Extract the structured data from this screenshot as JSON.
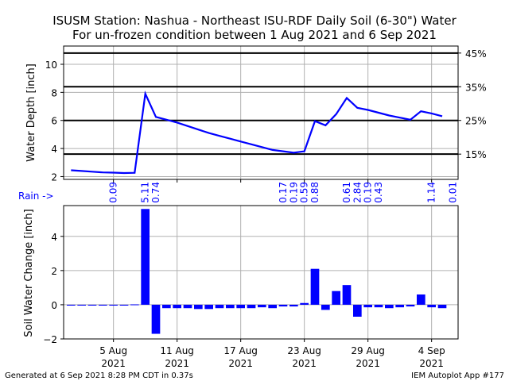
{
  "title_line1": "ISUSM Station: Nashua - Northeast ISU-RDF Daily Soil (6-30\") Water",
  "title_line2": "For un-frozen condition between 1 Aug 2021 and 6 Sep 2021",
  "rain_label": "Rain ->",
  "footer_left": "Generated at 6 Sep 2021 8:28 PM CDT in 0.37s",
  "footer_right": "IEM Autoplot App #177",
  "colors": {
    "series": "#0000ff",
    "grid": "#b0b0b0",
    "threshold": "#000000"
  },
  "chart_data": [
    {
      "type": "line",
      "ylabel": "Water Depth [inch]",
      "ylim": [
        1.8,
        11.3
      ],
      "yticks": [
        2,
        4,
        6,
        8,
        10
      ],
      "xlim": [
        -0.7,
        36.5
      ],
      "x_tick_positions": [
        4,
        10,
        16,
        22,
        28,
        34
      ],
      "grid": true,
      "thresholds": [
        {
          "value": 3.6,
          "label": "15%"
        },
        {
          "value": 6.0,
          "label": "25%"
        },
        {
          "value": 8.4,
          "label": "35%"
        },
        {
          "value": 10.8,
          "label": "45%"
        }
      ],
      "x": [
        0,
        1,
        2,
        3,
        4,
        5,
        6,
        7,
        8,
        9,
        10,
        11,
        12,
        13,
        14,
        15,
        16,
        17,
        18,
        19,
        20,
        21,
        22,
        23,
        24,
        25,
        26,
        27,
        28,
        29,
        30,
        31,
        32,
        33,
        34,
        35
      ],
      "values": [
        2.45,
        2.4,
        2.35,
        2.3,
        2.28,
        2.25,
        2.27,
        7.9,
        6.25,
        6.05,
        5.85,
        5.6,
        5.35,
        5.1,
        4.9,
        4.7,
        4.5,
        4.3,
        4.1,
        3.9,
        3.8,
        3.7,
        3.8,
        5.95,
        5.65,
        6.45,
        7.6,
        6.9,
        6.75,
        6.55,
        6.35,
        6.2,
        6.05,
        6.65,
        6.5,
        6.3
      ]
    },
    {
      "type": "bar",
      "ylabel": "Soil Water Change [inch]",
      "ylim": [
        -2,
        5.8
      ],
      "yticks": [
        -2,
        0,
        2,
        4
      ],
      "xlim": [
        -0.7,
        36.5
      ],
      "x_ticks": [
        {
          "x": 4,
          "label": [
            "5 Aug",
            "2021"
          ]
        },
        {
          "x": 10,
          "label": [
            "11 Aug",
            "2021"
          ]
        },
        {
          "x": 16,
          "label": [
            "17 Aug",
            "2021"
          ]
        },
        {
          "x": 22,
          "label": [
            "23 Aug",
            "2021"
          ]
        },
        {
          "x": 28,
          "label": [
            "29 Aug",
            "2021"
          ]
        },
        {
          "x": 34,
          "label": [
            "4 Sep",
            "2021"
          ]
        }
      ],
      "grid": true,
      "x": [
        0,
        1,
        2,
        3,
        4,
        5,
        6,
        7,
        8,
        9,
        10,
        11,
        12,
        13,
        14,
        15,
        16,
        17,
        18,
        19,
        20,
        21,
        22,
        23,
        24,
        25,
        26,
        27,
        28,
        29,
        30,
        31,
        32,
        33,
        34,
        35
      ],
      "values": [
        -0.05,
        -0.05,
        -0.05,
        -0.05,
        -0.05,
        -0.05,
        0.02,
        5.6,
        -1.7,
        -0.2,
        -0.2,
        -0.2,
        -0.25,
        -0.25,
        -0.2,
        -0.2,
        -0.2,
        -0.2,
        -0.15,
        -0.2,
        -0.1,
        -0.1,
        0.1,
        2.1,
        -0.3,
        0.8,
        1.15,
        -0.7,
        -0.15,
        -0.15,
        -0.2,
        -0.15,
        -0.1,
        0.6,
        -0.15,
        -0.2
      ]
    }
  ],
  "rain_values": [
    {
      "x": 4,
      "value": "0.09"
    },
    {
      "x": 7,
      "value": "5.11"
    },
    {
      "x": 8,
      "value": "0.74"
    },
    {
      "x": 20,
      "value": "0.17"
    },
    {
      "x": 21,
      "value": "0.19"
    },
    {
      "x": 22,
      "value": "0.59"
    },
    {
      "x": 23,
      "value": "0.88"
    },
    {
      "x": 26,
      "value": "0.61"
    },
    {
      "x": 27,
      "value": "2.84"
    },
    {
      "x": 28,
      "value": "0.19"
    },
    {
      "x": 29,
      "value": "0.43"
    },
    {
      "x": 34,
      "value": "1.14"
    },
    {
      "x": 36,
      "value": "0.01"
    }
  ]
}
